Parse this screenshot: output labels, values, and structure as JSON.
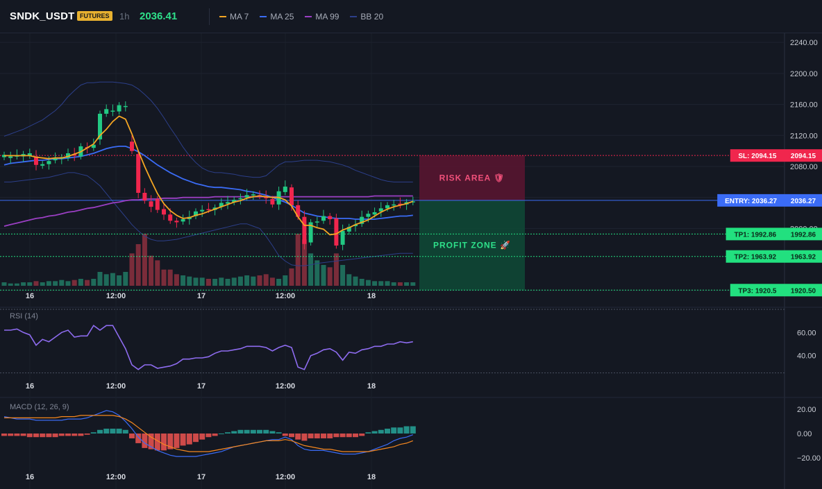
{
  "header": {
    "symbol": "SNDK_USDT",
    "badge": "FUTURES",
    "interval": "1h",
    "price": "2036.41",
    "legend": [
      {
        "label": "MA 7",
        "color": "#f5a623"
      },
      {
        "label": "MA 25",
        "color": "#3b6cf6"
      },
      {
        "label": "MA 99",
        "color": "#9b3fc4"
      },
      {
        "label": "BB 20",
        "color": "#2c3f8a"
      }
    ]
  },
  "colors": {
    "up": "#22c983",
    "down": "#f0264d",
    "vol_up": "#1f6b5a",
    "vol_down": "#7a2c3a",
    "ma7": "#f5a623",
    "ma25": "#3b6cf6",
    "ma99": "#9b3fc4",
    "bb": "#2c3f8a",
    "rsi": "#8e6cf0",
    "macd": "#3b6cf6",
    "signal": "#f5871f",
    "hist_up": "#26a69a",
    "hist_down": "#ef5350",
    "sl": "#f0264d",
    "entry": "#3b6cf6",
    "tp": "#22e07f"
  },
  "chart_data": [
    {
      "type": "line",
      "name": "price-chart",
      "ylim": [
        1910,
        2250
      ],
      "yticks": [
        "2240.00",
        "2200.00",
        "2160.00",
        "2120.00",
        "2080.00",
        "2040.00",
        "2000.00",
        "1920.00"
      ],
      "x_tick_labels": [
        "16",
        "12:00",
        "17",
        "12:00",
        "18"
      ],
      "closes": [
        2095,
        2093,
        2094,
        2096,
        2097,
        2082,
        2083,
        2087,
        2090,
        2092,
        2097,
        2094,
        2106,
        2104,
        2108,
        2148,
        2154,
        2152,
        2159,
        2158,
        2100,
        2046,
        2036,
        2028,
        2024,
        2018,
        2010,
        2008,
        2012,
        2015,
        2022,
        2024,
        2024,
        2027,
        2033,
        2034,
        2037,
        2039,
        2043,
        2044,
        2042,
        2039,
        2031,
        2048,
        2054,
        2030,
        2015,
        1980,
        2008,
        2009,
        2016,
        2012,
        1978,
        1997,
        2002,
        2005,
        2015,
        2019,
        2021,
        2026,
        2030,
        2031,
        2030,
        2034,
        2035
      ],
      "opens": [
        2092,
        2091,
        2093,
        2093,
        2094,
        2093,
        2081,
        2083,
        2088,
        2090,
        2091,
        2096,
        2093,
        2105,
        2104,
        2115,
        2148,
        2152,
        2151,
        2158,
        2112,
        2096,
        2046,
        2035,
        2038,
        2025,
        2018,
        2010,
        2009,
        2012,
        2016,
        2022,
        2025,
        2024,
        2028,
        2032,
        2034,
        2038,
        2040,
        2044,
        2043,
        2041,
        2038,
        2031,
        2047,
        2053,
        2030,
        2015,
        1982,
        2009,
        2010,
        2016,
        2013,
        1979,
        1996,
        2003,
        2006,
        2015,
        2018,
        2022,
        2026,
        2030,
        2032,
        2031,
        2034
      ],
      "ma7": [
        2094,
        2094,
        2094,
        2094,
        2094,
        2092,
        2091,
        2090,
        2091,
        2091,
        2093,
        2096,
        2099,
        2104,
        2109,
        2120,
        2128,
        2138,
        2145,
        2141,
        2122,
        2100,
        2080,
        2062,
        2045,
        2032,
        2023,
        2017,
        2013,
        2014,
        2017,
        2019,
        2022,
        2025,
        2028,
        2031,
        2034,
        2036,
        2039,
        2041,
        2042,
        2041,
        2040,
        2040,
        2037,
        2029,
        2015,
        2004,
        2004,
        2001,
        1999,
        1992,
        1993,
        1998,
        2001,
        2005,
        2008,
        2011,
        2016,
        2021,
        2025,
        2028,
        2030,
        2032,
        2035
      ],
      "ma25": [
        2082,
        2084,
        2085,
        2086,
        2087,
        2088,
        2088,
        2089,
        2090,
        2090,
        2091,
        2092,
        2093,
        2095,
        2097,
        2100,
        2103,
        2105,
        2106,
        2106,
        2103,
        2099,
        2094,
        2088,
        2082,
        2077,
        2072,
        2068,
        2064,
        2061,
        2058,
        2056,
        2054,
        2053,
        2053,
        2052,
        2051,
        2050,
        2048,
        2047,
        2045,
        2043,
        2040,
        2037,
        2034,
        2030,
        2025,
        2020,
        2018,
        2016,
        2015,
        2014,
        2013,
        2013,
        2013,
        2012,
        2012,
        2012,
        2012,
        2013,
        2014,
        2015,
        2016,
        2016,
        2017
      ],
      "ma99": [
        2003,
        2005,
        2007,
        2009,
        2011,
        2013,
        2014,
        2016,
        2017,
        2019,
        2021,
        2022,
        2024,
        2026,
        2027,
        2029,
        2031,
        2033,
        2034,
        2036,
        2037,
        2037,
        2038,
        2038,
        2038,
        2039,
        2039,
        2039,
        2040,
        2040,
        2040,
        2040,
        2040,
        2041,
        2041,
        2041,
        2041,
        2041,
        2041,
        2041,
        2041,
        2041,
        2041,
        2041,
        2041,
        2041,
        2041,
        2041,
        2041,
        2041,
        2041,
        2041,
        2041,
        2041,
        2041,
        2041,
        2041,
        2041,
        2042,
        2042,
        2042,
        2042,
        2042,
        2042,
        2042
      ],
      "bb_upper": [
        2119,
        2122,
        2125,
        2128,
        2132,
        2136,
        2140,
        2146,
        2152,
        2160,
        2170,
        2178,
        2185,
        2188,
        2188,
        2189,
        2189,
        2189,
        2188,
        2187,
        2185,
        2180,
        2173,
        2165,
        2155,
        2143,
        2130,
        2118,
        2105,
        2094,
        2085,
        2078,
        2074,
        2072,
        2072,
        2071,
        2070,
        2068,
        2067,
        2066,
        2066,
        2068,
        2075,
        2082,
        2086,
        2086,
        2087,
        2088,
        2088,
        2088,
        2087,
        2086,
        2084,
        2082,
        2079,
        2075,
        2072,
        2069,
        2066,
        2063,
        2061,
        2060,
        2060,
        2060,
        2060
      ],
      "bb_lower": [
        2060,
        2060,
        2061,
        2062,
        2063,
        2064,
        2065,
        2066,
        2068,
        2070,
        2072,
        2072,
        2070,
        2068,
        2062,
        2055,
        2045,
        2035,
        2025,
        2015,
        2005,
        1997,
        1990,
        1986,
        1984,
        1984,
        1985,
        1986,
        1988,
        1990,
        1992,
        1994,
        1996,
        1998,
        2000,
        2002,
        2004,
        2006,
        2006,
        2003,
        2000,
        1990,
        1978,
        1965,
        1958,
        1953,
        1952,
        1952,
        1953,
        1955,
        1956,
        1957,
        1958,
        1959,
        1960,
        1961,
        1962,
        1963,
        1964,
        1965,
        1966,
        1967,
        1968,
        1968,
        1968
      ],
      "volume": [
        3,
        2,
        2,
        3,
        3,
        4,
        3,
        4,
        4,
        5,
        4,
        5,
        6,
        5,
        6,
        12,
        10,
        11,
        9,
        12,
        28,
        36,
        45,
        26,
        22,
        14,
        14,
        10,
        9,
        8,
        7,
        7,
        6,
        6,
        7,
        6,
        7,
        8,
        9,
        8,
        9,
        10,
        7,
        6,
        9,
        15,
        45,
        40,
        28,
        22,
        18,
        16,
        28,
        18,
        10,
        8,
        6,
        5,
        4,
        4,
        4,
        3,
        3,
        3,
        3
      ],
      "sl": {
        "label": "SL: 2094.15",
        "value": 2094.15,
        "axis": "2094.15"
      },
      "entry": {
        "label": "ENTRY: 2036.27",
        "value": 2036.27,
        "axis": "2036.27"
      },
      "targets": [
        {
          "label": "TP1: 1992.86",
          "value": 1992.86,
          "axis": "1992.86"
        },
        {
          "label": "TP2: 1963.92",
          "value": 1963.92,
          "axis": "1963.92"
        },
        {
          "label": "TP3: 1920.5",
          "value": 1920.5,
          "axis": "1920.50"
        }
      ],
      "risk_label": "RISK AREA 🛡",
      "profit_label": "PROFIT ZONE 🚀"
    },
    {
      "type": "line",
      "name": "rsi",
      "title": "RSI (14)",
      "ylim": [
        20,
        80
      ],
      "yticks": [
        "60.00",
        "40.00"
      ],
      "values": [
        62,
        62,
        63,
        60,
        58,
        49,
        54,
        52,
        56,
        60,
        62,
        56,
        57,
        57,
        66,
        62,
        66,
        66,
        56,
        46,
        32,
        28,
        32,
        32,
        29,
        30,
        31,
        33,
        37,
        37,
        38,
        38,
        39,
        42,
        44,
        44,
        45,
        46,
        48,
        48,
        48,
        47,
        44,
        47,
        49,
        47,
        30,
        28,
        40,
        42,
        45,
        46,
        43,
        36,
        43,
        42,
        45,
        46,
        48,
        48,
        50,
        50,
        52,
        51,
        52
      ]
    },
    {
      "type": "line",
      "name": "macd",
      "title": "MACD (12, 26, 9)",
      "ylim": [
        -27,
        27
      ],
      "yticks": [
        "20.00",
        "0.00",
        "−20.00"
      ],
      "macd": [
        14,
        13,
        12,
        12,
        12,
        11,
        11,
        11,
        11,
        11,
        12,
        12,
        12,
        13,
        15,
        17,
        19,
        18,
        15,
        10,
        4,
        -3,
        -8,
        -11,
        -14,
        -16,
        -18,
        -19,
        -19,
        -19,
        -19,
        -18,
        -17,
        -16,
        -15,
        -13,
        -11,
        -10,
        -9,
        -8,
        -7,
        -6,
        -5,
        -5,
        -3,
        -5,
        -10,
        -13,
        -14,
        -14,
        -14,
        -15,
        -16,
        -17,
        -17,
        -17,
        -16,
        -15,
        -13,
        -11,
        -9,
        -6,
        -4,
        -3,
        -1
      ],
      "signal": [
        13,
        13,
        13,
        13,
        13,
        13,
        13,
        13,
        13,
        14,
        14,
        14,
        15,
        15,
        15,
        15,
        15,
        15,
        14,
        12,
        9,
        5,
        1,
        -3,
        -6,
        -9,
        -11,
        -13,
        -14,
        -15,
        -15,
        -15,
        -15,
        -14,
        -13,
        -12,
        -11,
        -10,
        -9,
        -8,
        -7,
        -6,
        -6,
        -6,
        -5,
        -6,
        -8,
        -10,
        -11,
        -12,
        -13,
        -13,
        -14,
        -15,
        -15,
        -15,
        -15,
        -15,
        -14,
        -13,
        -12,
        -11,
        -9,
        -8,
        -6
      ],
      "hist": [
        -2,
        -2,
        -2,
        -2,
        -3,
        -3,
        -3,
        -3,
        -3,
        -2,
        -2,
        -2,
        -2,
        -1,
        1,
        3,
        4,
        4,
        4,
        3,
        -4,
        -8,
        -12,
        -13,
        -14,
        -14,
        -13,
        -12,
        -10,
        -9,
        -7,
        -5,
        -3,
        -2,
        0,
        1,
        2,
        3,
        3,
        3,
        3,
        3,
        2,
        1,
        -2,
        -3,
        -5,
        -6,
        -4,
        -4,
        -4,
        -4,
        -3,
        -3,
        -3,
        -3,
        -2,
        1,
        2,
        3,
        4,
        5,
        5,
        6,
        6
      ]
    }
  ]
}
